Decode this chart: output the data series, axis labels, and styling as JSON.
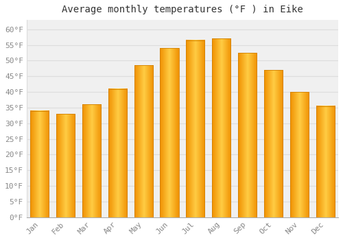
{
  "title": "Average monthly temperatures (°F ) in Eike",
  "months": [
    "Jan",
    "Feb",
    "Mar",
    "Apr",
    "May",
    "Jun",
    "Jul",
    "Aug",
    "Sep",
    "Oct",
    "Nov",
    "Dec"
  ],
  "values": [
    34,
    33,
    36,
    41,
    48.5,
    54,
    56.5,
    57,
    52.5,
    47,
    40,
    35.5
  ],
  "bar_color_center": "#FFD060",
  "bar_color_edge": "#F5A000",
  "background_color": "#FFFFFF",
  "plot_bg_color": "#F0F0F0",
  "grid_color": "#DDDDDD",
  "tick_label_color": "#888888",
  "title_color": "#333333",
  "ylim": [
    0,
    63
  ],
  "yticks": [
    0,
    5,
    10,
    15,
    20,
    25,
    30,
    35,
    40,
    45,
    50,
    55,
    60
  ],
  "ytick_labels": [
    "0°F",
    "5°F",
    "10°F",
    "15°F",
    "20°F",
    "25°F",
    "30°F",
    "35°F",
    "40°F",
    "45°F",
    "50°F",
    "55°F",
    "60°F"
  ],
  "title_fontsize": 10,
  "tick_fontsize": 8
}
